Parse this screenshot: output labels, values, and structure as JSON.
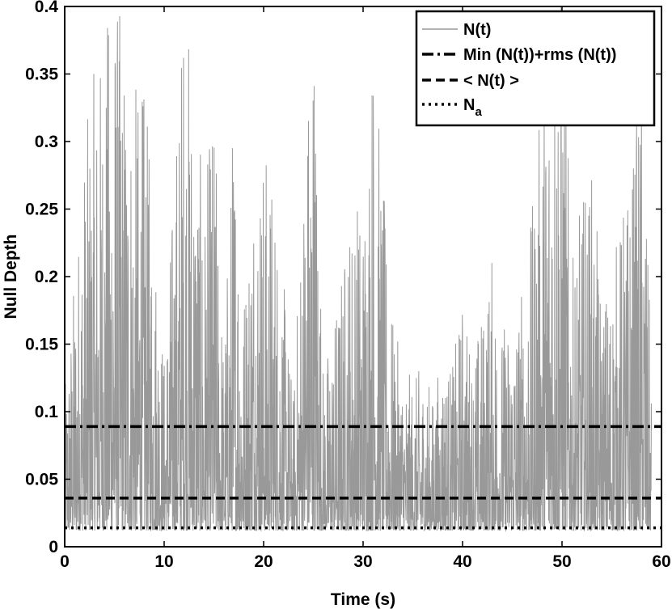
{
  "chart_data": {
    "type": "line",
    "xlabel": "Time (s)",
    "ylabel": "Null Depth",
    "xlim": [
      0,
      60
    ],
    "ylim": [
      0,
      0.4
    ],
    "x_ticks": [
      "0",
      "10",
      "20",
      "30",
      "40",
      "50",
      "60"
    ],
    "y_ticks": [
      "0",
      "0.05",
      "0.1",
      "0.15",
      "0.2",
      "0.25",
      "0.3",
      "0.35",
      "0.4"
    ],
    "x_tick_values": [
      0,
      10,
      20,
      30,
      40,
      50,
      60
    ],
    "y_tick_values": [
      0,
      0.05,
      0.1,
      0.15,
      0.2,
      0.25,
      0.3,
      0.35,
      0.4
    ],
    "legend_position": "top-right",
    "grid": false,
    "series": [
      {
        "name": "N(t)",
        "style": "solid",
        "color": "#999999",
        "x_range": [
          0,
          59
        ],
        "baseline": 0.012,
        "envelope": [
          [
            0,
            0.11
          ],
          [
            1,
            0.2
          ],
          [
            2,
            0.29
          ],
          [
            3,
            0.34
          ],
          [
            4,
            0.37
          ],
          [
            5,
            0.41
          ],
          [
            6,
            0.36
          ],
          [
            7,
            0.33
          ],
          [
            8,
            0.33
          ],
          [
            9,
            0.24
          ],
          [
            10,
            0.14
          ],
          [
            11,
            0.27
          ],
          [
            12,
            0.41
          ],
          [
            13,
            0.33
          ],
          [
            14,
            0.25
          ],
          [
            15,
            0.32
          ],
          [
            16,
            0.14
          ],
          [
            17,
            0.33
          ],
          [
            18,
            0.19
          ],
          [
            19,
            0.29
          ],
          [
            20,
            0.29
          ],
          [
            21,
            0.27
          ],
          [
            22,
            0.19
          ],
          [
            23,
            0.11
          ],
          [
            24,
            0.28
          ],
          [
            25,
            0.41
          ],
          [
            26,
            0.13
          ],
          [
            27,
            0.16
          ],
          [
            28,
            0.21
          ],
          [
            29,
            0.26
          ],
          [
            30,
            0.25
          ],
          [
            31,
            0.38
          ],
          [
            32,
            0.26
          ],
          [
            33,
            0.16
          ],
          [
            34,
            0.13
          ],
          [
            35,
            0.12
          ],
          [
            36,
            0.13
          ],
          [
            37,
            0.11
          ],
          [
            38,
            0.14
          ],
          [
            39,
            0.13
          ],
          [
            40,
            0.18
          ],
          [
            41,
            0.14
          ],
          [
            42,
            0.17
          ],
          [
            43,
            0.21
          ],
          [
            44,
            0.16
          ],
          [
            45,
            0.17
          ],
          [
            46,
            0.19
          ],
          [
            47,
            0.24
          ],
          [
            48,
            0.33
          ],
          [
            49,
            0.41
          ],
          [
            50,
            0.41
          ],
          [
            51,
            0.2
          ],
          [
            52,
            0.25
          ],
          [
            53,
            0.27
          ],
          [
            54,
            0.18
          ],
          [
            55,
            0.2
          ],
          [
            56,
            0.24
          ],
          [
            57,
            0.27
          ],
          [
            58,
            0.34
          ],
          [
            59,
            0.13
          ]
        ]
      },
      {
        "name": "Min (N(t))+rms (N(t))",
        "style": "dashdot",
        "color": "#000000",
        "y": 0.089
      },
      {
        "name": "< N(t) >",
        "style": "dashed",
        "color": "#000000",
        "y": 0.036
      },
      {
        "name": "N",
        "name_subscript": "a",
        "style": "dotted",
        "color": "#000000",
        "y": 0.014
      }
    ]
  }
}
